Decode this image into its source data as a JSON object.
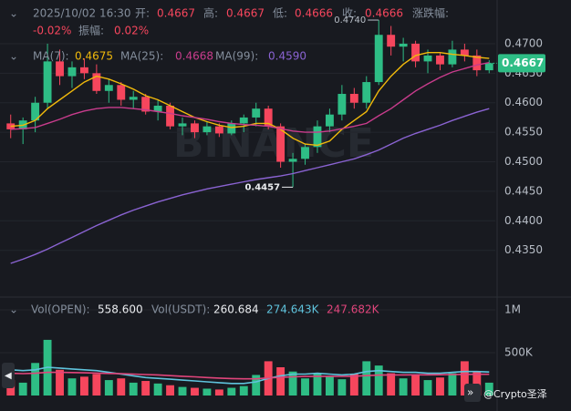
{
  "header": {
    "datetime": "2025/10/02 16:30",
    "open_label": "开:",
    "open": "0.4667",
    "high_label": "高:",
    "high": "0.4667",
    "low_label": "低:",
    "low": "0.4666",
    "close_label": "收:",
    "close": "0.4666",
    "change_label": "涨跌幅:",
    "change": "-0.02%",
    "amplitude_label": "振幅:",
    "amplitude": "0.02%"
  },
  "watermark": "BINANCE",
  "credit": "@Crypto圣泽",
  "chart_data": [
    {
      "type": "candlestick",
      "open": [
        0.4565,
        0.4555,
        0.457,
        0.46,
        0.467,
        0.4645,
        0.466,
        0.465,
        0.462,
        0.463,
        0.4605,
        0.461,
        0.4585,
        0.4595,
        0.456,
        0.4565,
        0.455,
        0.456,
        0.4548,
        0.4565,
        0.4575,
        0.459,
        0.456,
        0.45,
        0.4505,
        0.4525,
        0.456,
        0.458,
        0.4615,
        0.46,
        0.4635,
        0.4715,
        0.4695,
        0.47,
        0.467,
        0.468,
        0.4665,
        0.469,
        0.468,
        0.4655
      ],
      "high": [
        0.458,
        0.4575,
        0.461,
        0.47,
        0.469,
        0.467,
        0.4675,
        0.4665,
        0.464,
        0.4635,
        0.462,
        0.4615,
        0.4605,
        0.46,
        0.4575,
        0.457,
        0.4568,
        0.4565,
        0.457,
        0.458,
        0.46,
        0.4595,
        0.4565,
        0.4515,
        0.453,
        0.457,
        0.459,
        0.463,
        0.4625,
        0.4645,
        0.474,
        0.473,
        0.471,
        0.4705,
        0.469,
        0.4685,
        0.4705,
        0.47,
        0.469,
        0.4672
      ],
      "low": [
        0.454,
        0.453,
        0.455,
        0.459,
        0.463,
        0.4625,
        0.464,
        0.4615,
        0.46,
        0.4595,
        0.459,
        0.458,
        0.457,
        0.4555,
        0.4545,
        0.454,
        0.4545,
        0.4542,
        0.4545,
        0.455,
        0.456,
        0.4555,
        0.449,
        0.4457,
        0.4495,
        0.4515,
        0.455,
        0.457,
        0.459,
        0.459,
        0.463,
        0.468,
        0.467,
        0.466,
        0.465,
        0.4655,
        0.466,
        0.467,
        0.4645,
        0.465
      ],
      "close": [
        0.4555,
        0.457,
        0.46,
        0.467,
        0.4645,
        0.466,
        0.465,
        0.462,
        0.463,
        0.4605,
        0.461,
        0.4585,
        0.4595,
        0.456,
        0.4565,
        0.455,
        0.456,
        0.4548,
        0.4565,
        0.4575,
        0.459,
        0.456,
        0.45,
        0.4505,
        0.4525,
        0.456,
        0.458,
        0.4615,
        0.46,
        0.4635,
        0.4715,
        0.4695,
        0.47,
        0.467,
        0.468,
        0.4665,
        0.469,
        0.468,
        0.4655,
        0.4667
      ],
      "up_color": "#2ebd85",
      "down_color": "#f6465d",
      "series": [
        {
          "name": "MA(7):",
          "value_label": "0.4675",
          "color": "#f0b90b",
          "values": [
            0.456,
            0.4562,
            0.457,
            0.459,
            0.4605,
            0.462,
            0.4635,
            0.4645,
            0.464,
            0.4632,
            0.4623,
            0.4612,
            0.4605,
            0.4595,
            0.4585,
            0.4575,
            0.4568,
            0.4562,
            0.4558,
            0.456,
            0.4565,
            0.4565,
            0.4555,
            0.454,
            0.453,
            0.4528,
            0.4535,
            0.4555,
            0.457,
            0.4585,
            0.462,
            0.4645,
            0.4665,
            0.468,
            0.4685,
            0.4685,
            0.4682,
            0.468,
            0.4677,
            0.4675
          ]
        },
        {
          "name": "MA(25):",
          "value_label": "0.4668",
          "color": "#c83c8c",
          "values": [
            0.4555,
            0.4556,
            0.4558,
            0.4565,
            0.4572,
            0.458,
            0.4586,
            0.459,
            0.4592,
            0.4592,
            0.459,
            0.4588,
            0.4585,
            0.4582,
            0.4578,
            0.4575,
            0.4572,
            0.4568,
            0.4565,
            0.4563,
            0.4562,
            0.456,
            0.4556,
            0.4552,
            0.455,
            0.455,
            0.4552,
            0.4556,
            0.456,
            0.4565,
            0.4578,
            0.459,
            0.4605,
            0.462,
            0.4632,
            0.4643,
            0.4652,
            0.4658,
            0.4664,
            0.4668
          ]
        },
        {
          "name": "MA(99):",
          "value_label": "0.4590",
          "color": "#8a63d2",
          "values": [
            0.4328,
            0.4335,
            0.4343,
            0.4352,
            0.4362,
            0.4372,
            0.4382,
            0.4392,
            0.4401,
            0.441,
            0.4418,
            0.4425,
            0.4432,
            0.4438,
            0.4444,
            0.4449,
            0.4454,
            0.4458,
            0.4462,
            0.4466,
            0.447,
            0.4473,
            0.4476,
            0.448,
            0.4485,
            0.449,
            0.4495,
            0.45,
            0.4505,
            0.4512,
            0.452,
            0.453,
            0.454,
            0.4548,
            0.4555,
            0.4562,
            0.457,
            0.4577,
            0.4584,
            0.459
          ]
        }
      ],
      "ylim": [
        0.4277,
        0.4774
      ],
      "yticks": [
        {
          "value": 0.47,
          "label": "0.4700"
        },
        {
          "value": 0.465,
          "label": "0.4650"
        },
        {
          "value": 0.46,
          "label": "0.4600"
        },
        {
          "value": 0.455,
          "label": "0.4550"
        },
        {
          "value": 0.45,
          "label": "0.4500"
        },
        {
          "value": 0.445,
          "label": "0.4450"
        },
        {
          "value": 0.44,
          "label": "0.4400"
        },
        {
          "value": 0.435,
          "label": "0.4350"
        }
      ],
      "grid": true,
      "high_label": "0.4740",
      "low_label": "0.4457",
      "last_price_label": "0.4667"
    },
    {
      "type": "bar",
      "legend": {
        "open_name": "Vol(OPEN):",
        "open_value": "558.600",
        "usdt_name": "Vol(USDT):",
        "usdt_value": "260.684"
      },
      "values": [
        180000,
        150000,
        380000,
        650000,
        300000,
        200000,
        220000,
        250000,
        180000,
        200000,
        150000,
        170000,
        140000,
        120000,
        100000,
        90000,
        80000,
        70000,
        90000,
        110000,
        240000,
        400000,
        330000,
        280000,
        200000,
        260000,
        220000,
        190000,
        250000,
        400000,
        350000,
        260000,
        200000,
        240000,
        180000,
        210000,
        260000,
        400000,
        280000,
        150000
      ],
      "series": [
        {
          "value_label": "274.643K",
          "color": "#5fc3dc",
          "values": [
            300000,
            290000,
            300000,
            330000,
            320000,
            310000,
            300000,
            290000,
            270000,
            250000,
            230000,
            210000,
            200000,
            190000,
            180000,
            170000,
            160000,
            150000,
            140000,
            140000,
            160000,
            200000,
            230000,
            250000,
            250000,
            260000,
            250000,
            240000,
            250000,
            280000,
            290000,
            280000,
            270000,
            270000,
            260000,
            260000,
            270000,
            280000,
            280000,
            274643
          ]
        },
        {
          "value_label": "247.682K",
          "color": "#e0457b",
          "values": [
            260000,
            255000,
            260000,
            270000,
            270000,
            268000,
            265000,
            262000,
            258000,
            255000,
            250000,
            245000,
            240000,
            232000,
            225000,
            218000,
            210000,
            203000,
            198000,
            195000,
            195000,
            205000,
            212000,
            218000,
            222000,
            225000,
            225000,
            224000,
            226000,
            232000,
            238000,
            240000,
            240000,
            242000,
            242000,
            243000,
            245000,
            247000,
            248000,
            247682
          ]
        }
      ],
      "ylim": [
        0,
        1128000
      ],
      "yticks": [
        {
          "value": 1000000,
          "label": "1M"
        },
        {
          "value": 500000,
          "label": "500K"
        }
      ]
    }
  ]
}
